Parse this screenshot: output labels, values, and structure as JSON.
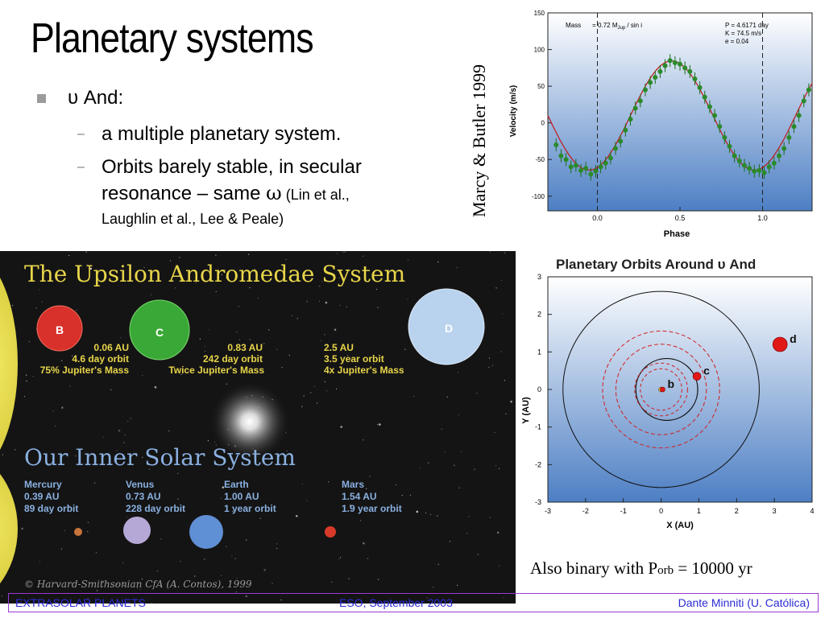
{
  "slide": {
    "title": "Planetary systems",
    "bullet_main": "υ And:",
    "sub1": "a multiple planetary system.",
    "sub2_line1": "Orbits barely stable, in secular",
    "sub2_line2a": "resonance – same ",
    "sub2_omega": "ω",
    "sub2_line2b": " (Lin et al.,",
    "sub2_line3": "Laughlin et al., Lee & Peale)",
    "rotated_caption": "Marcy & Butler 1999",
    "binary_a": "Also binary with P",
    "binary_sub": "orb",
    "binary_b": " = 10000 yr"
  },
  "footer": {
    "left": "EXTRASOLAR PLANETS",
    "center": "ESO, September 2003",
    "right": "Dante Minniti (U. Católica)"
  },
  "upsilon_image": {
    "title": "The Upsilon Andromedae System",
    "planets": [
      {
        "letter": "B",
        "au": "0.06 AU",
        "orbit": "4.6 day orbit",
        "mass": "75% Jupiter's Mass",
        "color": "#d8302a"
      },
      {
        "letter": "C",
        "au": "0.83 AU",
        "orbit": "242 day orbit",
        "mass": "Twice Jupiter's Mass",
        "color": "#3aa836"
      },
      {
        "letter": "D",
        "au": "2.5 AU",
        "orbit": "3.5 year orbit",
        "mass": "4x Jupiter's Mass",
        "color": "#b9d2ee"
      }
    ],
    "inner_title": "Our Inner Solar System",
    "inner": [
      {
        "name": "Mercury",
        "au": "0.39 AU",
        "orbit": "89 day orbit",
        "color": "#c8743a"
      },
      {
        "name": "Venus",
        "au": "0.73 AU",
        "orbit": "228 day orbit",
        "color": "#b6a8d6"
      },
      {
        "name": "Earth",
        "au": "1.00 AU",
        "orbit": "1 year orbit",
        "color": "#5f8fd4"
      },
      {
        "name": "Mars",
        "au": "1.54 AU",
        "orbit": "1.9 year orbit",
        "color": "#d83a2a"
      }
    ],
    "credit": "© Harvard-Smithsonian CfA (A. Contos), 1999"
  },
  "velocity_chart": {
    "mass_label_a": "Mass",
    "mass_label_b": "= 0.72 M",
    "mass_sub": "Jup",
    "mass_label_c": " / sin i",
    "params": [
      "P = 4.6171 day",
      "K = 74.5 m/s",
      "e = 0.04"
    ],
    "xlabel": "Phase",
    "ylabel": "Velocity (m/s)",
    "yticks": [
      "150",
      "100",
      "50",
      "0",
      "-50",
      "-100"
    ],
    "xticks": [
      "0.0",
      "0.5",
      "1.0"
    ]
  },
  "orbits_chart": {
    "title": "Planetary Orbits Around υ And",
    "xlabel": "X (AU)",
    "ylabel": "Y (AU)",
    "xticks": [
      "-3",
      "-2",
      "-1",
      "0",
      "1",
      "2",
      "3",
      "4"
    ],
    "yticks": [
      "3",
      "2",
      "1",
      "0",
      "-1",
      "-2",
      "-3"
    ],
    "labels": [
      "b",
      "c",
      "d"
    ]
  },
  "chart_data": [
    {
      "type": "scatter",
      "title": "",
      "xlabel": "Phase",
      "ylabel": "Velocity (m/s)",
      "xlim": [
        -0.3,
        1.3
      ],
      "ylim": [
        -120,
        150
      ],
      "fit_curve": {
        "K": 74.5,
        "offset": 10,
        "peak_phase": 0.45
      },
      "series": [
        {
          "x": [
            -0.25,
            -0.22,
            -0.19,
            -0.16,
            -0.13,
            -0.1,
            -0.07,
            -0.04,
            -0.01,
            0.02,
            0.05,
            0.08,
            0.11,
            0.14,
            0.17,
            0.2,
            0.23,
            0.26,
            0.29,
            0.32,
            0.35,
            0.38,
            0.41,
            0.44,
            0.47,
            0.5,
            0.53,
            0.56,
            0.59,
            0.62,
            0.65,
            0.68,
            0.71,
            0.74,
            0.77,
            0.8,
            0.83,
            0.86,
            0.89,
            0.92,
            0.95,
            0.98,
            1.01,
            1.04,
            1.07,
            1.1,
            1.13,
            1.16,
            1.19,
            1.22,
            1.25,
            1.28
          ],
          "y": [
            -30,
            -45,
            -50,
            -60,
            -58,
            -65,
            -62,
            -70,
            -66,
            -60,
            -55,
            -48,
            -35,
            -25,
            -10,
            5,
            20,
            30,
            45,
            55,
            62,
            70,
            78,
            85,
            82,
            80,
            75,
            70,
            60,
            48,
            35,
            22,
            10,
            -5,
            -20,
            -32,
            -45,
            -52,
            -58,
            -62,
            -66,
            -65,
            -68,
            -60,
            -55,
            -45,
            -35,
            -20,
            -5,
            10,
            30,
            45
          ]
        }
      ]
    },
    {
      "type": "scatter",
      "title": "Planetary Orbits Around υ And",
      "xlabel": "X (AU)",
      "ylabel": "Y (AU)",
      "xlim": [
        -3,
        4
      ],
      "ylim": [
        -3,
        3
      ],
      "series": [
        {
          "name": "b",
          "orbit_radius_au": 0.06,
          "position": [
            0.04,
            0.0
          ]
        },
        {
          "name": "c",
          "orbit_radius_au": 0.83,
          "position": [
            0.95,
            0.35
          ]
        },
        {
          "name": "d",
          "orbit_radius_au": 2.5,
          "position": [
            3.15,
            1.2
          ]
        }
      ]
    }
  ]
}
